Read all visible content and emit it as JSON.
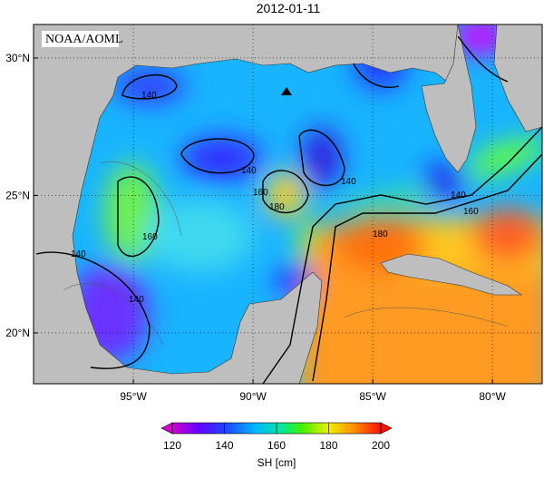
{
  "map": {
    "title": "2012-01-11",
    "credit": "NOAA/AOML",
    "lon_range": [
      -99.17,
      -77.92
    ],
    "lat_range": [
      18.15,
      31.22
    ],
    "lon_ticks": [
      {
        "value": -95,
        "label": "95°W"
      },
      {
        "value": -90,
        "label": "90°W"
      },
      {
        "value": -85,
        "label": "85°W"
      },
      {
        "value": -80,
        "label": "80°W"
      }
    ],
    "lat_ticks": [
      {
        "value": 30,
        "label": "30°N"
      },
      {
        "value": 25,
        "label": "25°N"
      },
      {
        "value": 20,
        "label": "20°N"
      }
    ],
    "contour_labels": [
      "140",
      "140",
      "160",
      "180",
      "140",
      "140",
      "160",
      "180",
      "160",
      "140",
      "140"
    ],
    "colorbar": {
      "label": "SH [cm]",
      "lim": [
        120,
        200
      ],
      "ticks": [
        120,
        140,
        160,
        180,
        200
      ]
    }
  }
}
